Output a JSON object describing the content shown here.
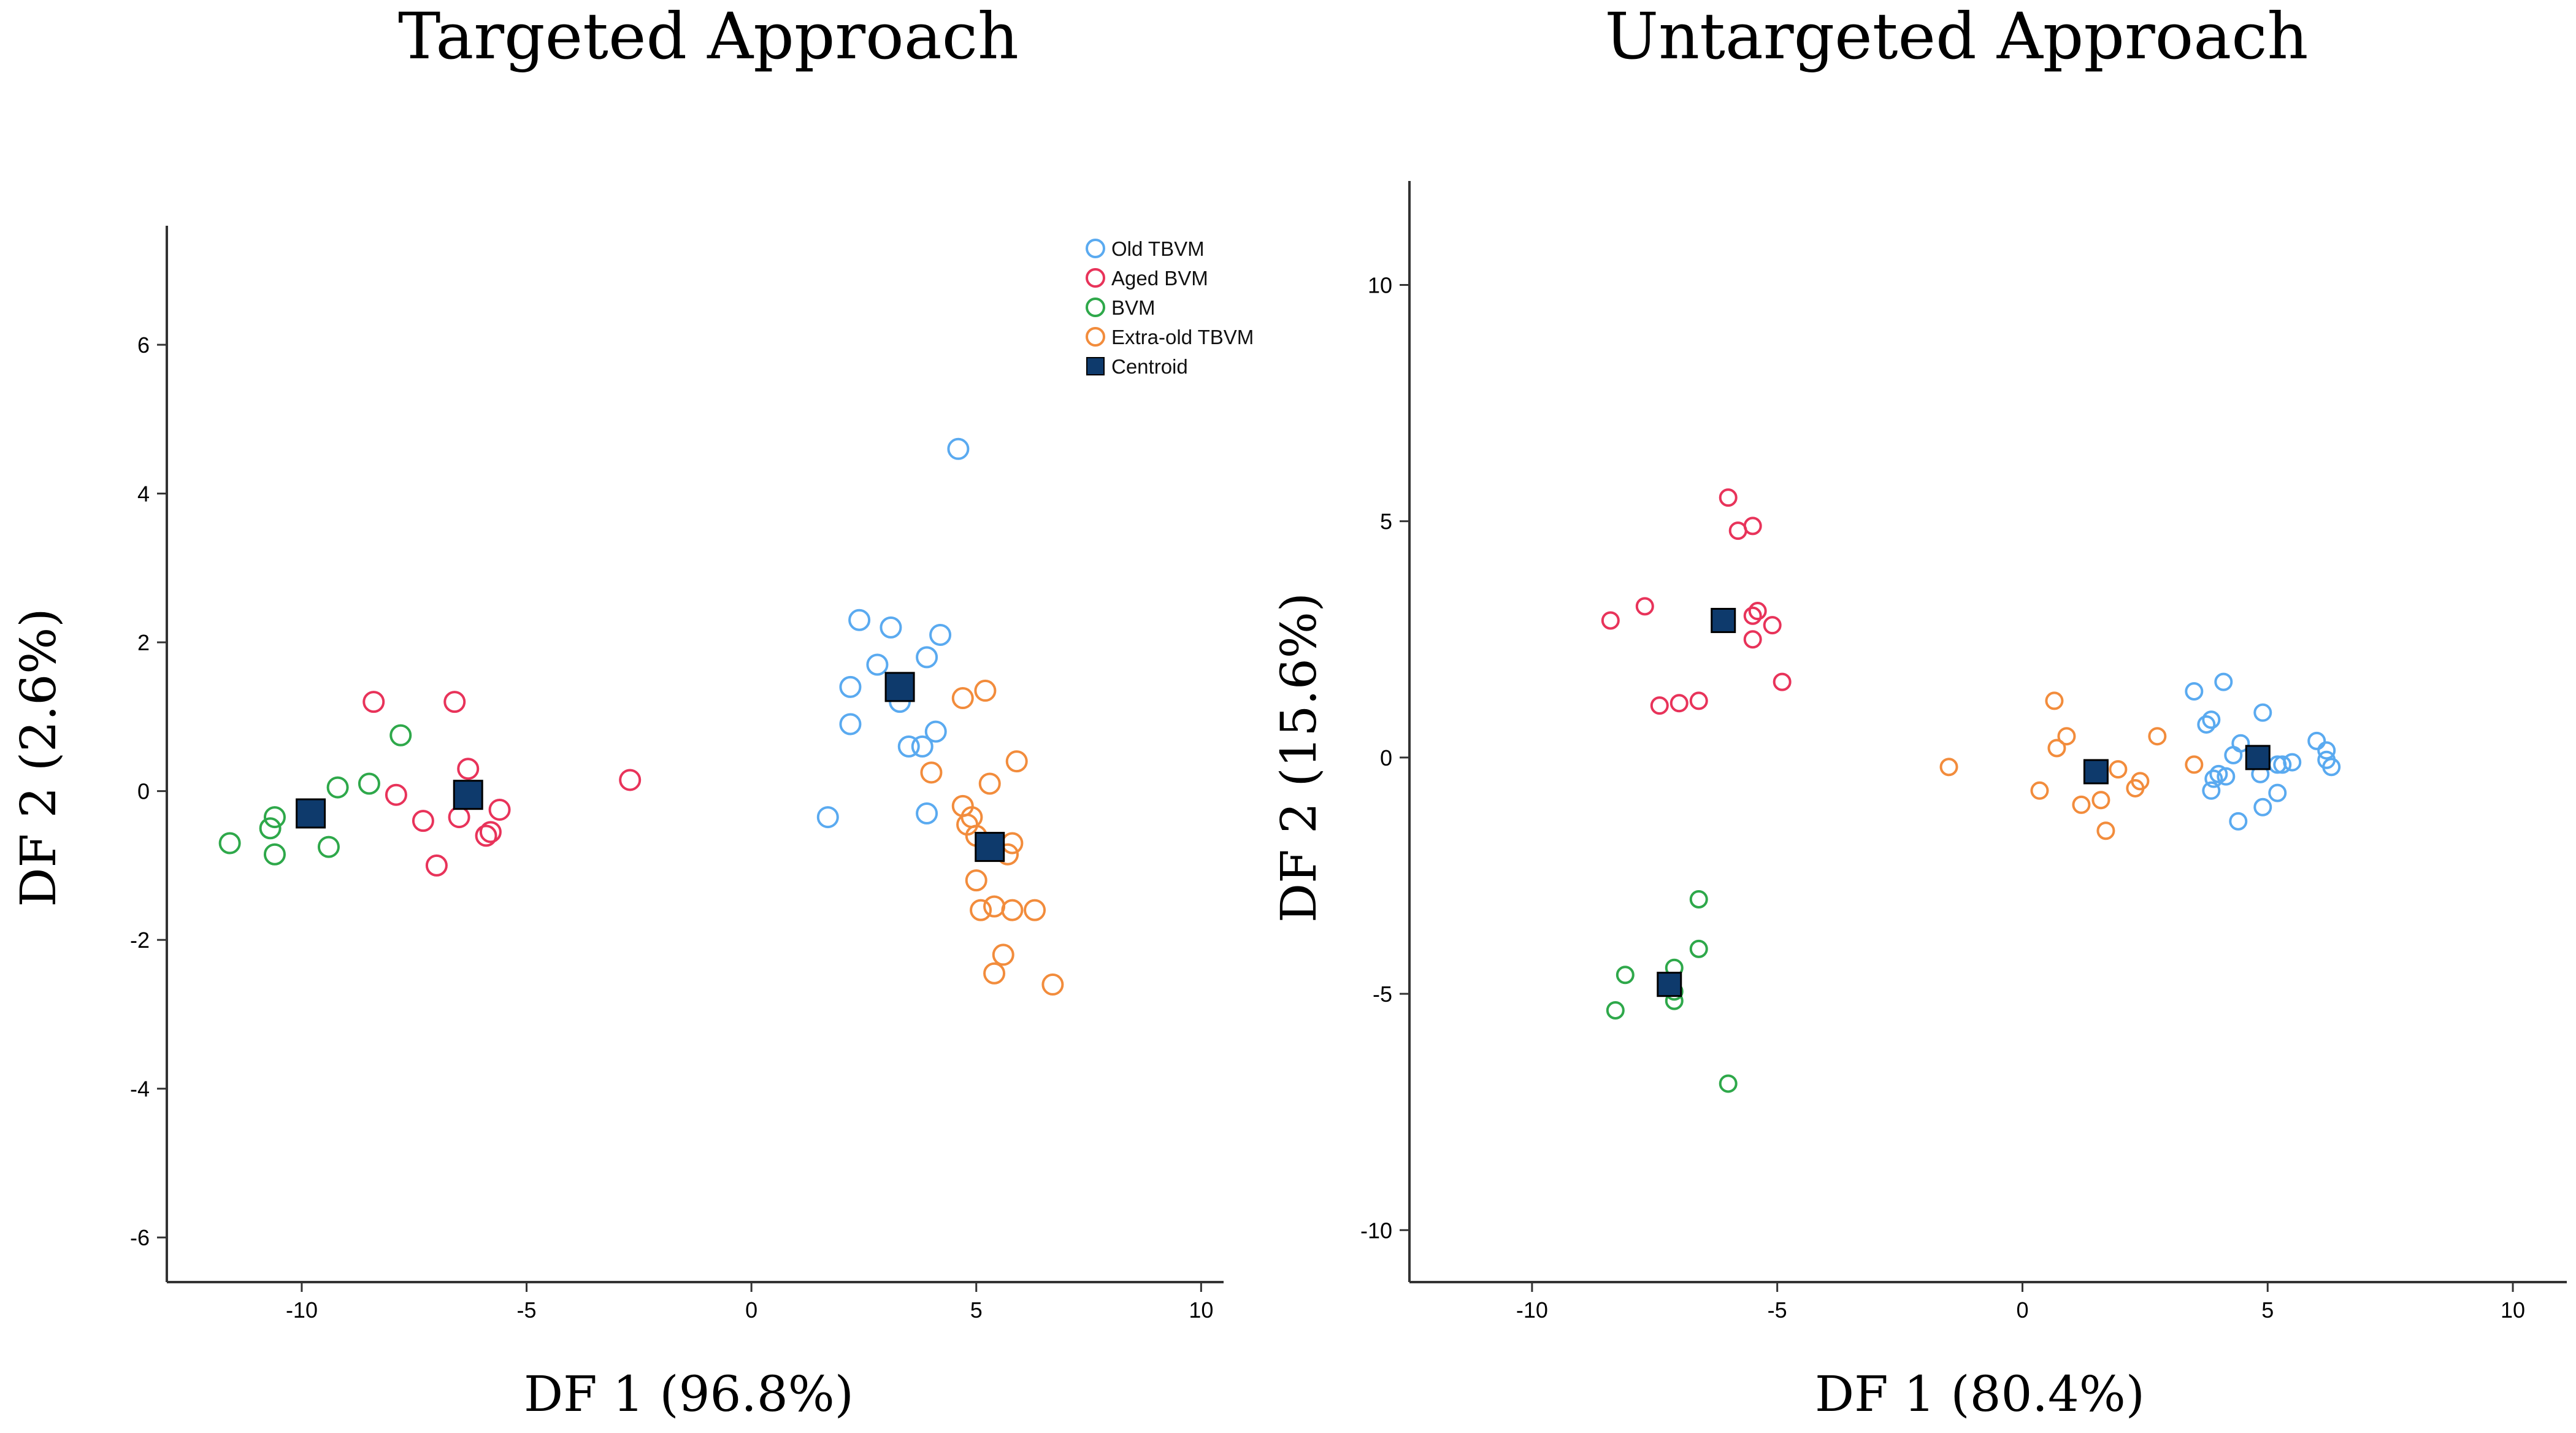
{
  "colors": {
    "old_tbvm": "#5aaaf0",
    "aged_bvm": "#e8335a",
    "bvm": "#2ea84a",
    "extra_old_tbvm": "#f28c3c",
    "centroid": "#0e3a6c",
    "axis": "#333333"
  },
  "legend": [
    {
      "key": "old_tbvm",
      "label": "Old TBVM",
      "marker": "circle"
    },
    {
      "key": "aged_bvm",
      "label": "Aged BVM",
      "marker": "circle"
    },
    {
      "key": "bvm",
      "label": "BVM",
      "marker": "circle"
    },
    {
      "key": "extra_old_tbvm",
      "label": "Extra-old TBVM",
      "marker": "circle"
    },
    {
      "key": "centroid",
      "label": "Centroid",
      "marker": "square"
    }
  ],
  "chart_data": [
    {
      "type": "scatter",
      "title": "Targeted Approach",
      "xlabel": "DF 1 (96.8%)",
      "ylabel": "DF 2 (2.6%)",
      "xlim": [
        -13,
        10.5
      ],
      "ylim": [
        -6.6,
        7.6
      ],
      "xticks": [
        -10,
        -5,
        0,
        5,
        10
      ],
      "xtick_labels": [
        "-10",
        "-5",
        "0",
        "5",
        "10"
      ],
      "yticks": [
        6,
        4,
        2,
        0,
        -2,
        -4,
        -6
      ],
      "ytick_labels": [
        "6",
        "4",
        "2",
        "0",
        "-2",
        "-4",
        "-6"
      ],
      "series": [
        {
          "name": "Old TBVM",
          "key": "old_tbvm",
          "points": [
            [
              4.6,
              4.6
            ],
            [
              2.4,
              2.3
            ],
            [
              3.1,
              2.2
            ],
            [
              4.2,
              2.1
            ],
            [
              3.9,
              1.8
            ],
            [
              2.8,
              1.7
            ],
            [
              2.2,
              1.4
            ],
            [
              3.3,
              1.2
            ],
            [
              2.2,
              0.9
            ],
            [
              4.1,
              0.8
            ],
            [
              3.5,
              0.6
            ],
            [
              3.8,
              0.6
            ],
            [
              1.7,
              -0.35
            ],
            [
              3.9,
              -0.3
            ]
          ]
        },
        {
          "name": "Aged BVM",
          "key": "aged_bvm",
          "points": [
            [
              -8.4,
              1.2
            ],
            [
              -6.6,
              1.2
            ],
            [
              -7.9,
              -0.05
            ],
            [
              -6.3,
              0.3
            ],
            [
              -2.7,
              0.15
            ],
            [
              -6.5,
              -0.35
            ],
            [
              -7.3,
              -0.4
            ],
            [
              -5.6,
              -0.25
            ],
            [
              -5.8,
              -0.55
            ],
            [
              -5.9,
              -0.6
            ],
            [
              -7.0,
              -1.0
            ]
          ]
        },
        {
          "name": "BVM",
          "key": "bvm",
          "points": [
            [
              -7.8,
              0.75
            ],
            [
              -9.2,
              0.05
            ],
            [
              -8.5,
              0.1
            ],
            [
              -10.6,
              -0.35
            ],
            [
              -10.7,
              -0.5
            ],
            [
              -11.6,
              -0.7
            ],
            [
              -10.6,
              -0.85
            ],
            [
              -9.4,
              -0.75
            ]
          ]
        },
        {
          "name": "Extra-old TBVM",
          "key": "extra_old_tbvm",
          "points": [
            [
              5.2,
              1.35
            ],
            [
              4.7,
              1.25
            ],
            [
              5.9,
              0.4
            ],
            [
              4.0,
              0.25
            ],
            [
              5.3,
              0.1
            ],
            [
              4.7,
              -0.2
            ],
            [
              4.9,
              -0.35
            ],
            [
              4.8,
              -0.45
            ],
            [
              5.0,
              -0.6
            ],
            [
              5.8,
              -0.7
            ],
            [
              5.3,
              -0.8
            ],
            [
              5.7,
              -0.85
            ],
            [
              5.0,
              -1.2
            ],
            [
              5.1,
              -1.6
            ],
            [
              5.4,
              -1.55
            ],
            [
              5.8,
              -1.6
            ],
            [
              6.3,
              -1.6
            ],
            [
              5.6,
              -2.2
            ],
            [
              5.4,
              -2.45
            ],
            [
              6.7,
              -2.6
            ]
          ]
        },
        {
          "name": "Centroid",
          "key": "centroid",
          "points": [
            [
              3.3,
              1.4
            ],
            [
              -9.8,
              -0.3
            ],
            [
              -6.3,
              -0.05
            ],
            [
              5.3,
              -0.75
            ]
          ]
        }
      ]
    },
    {
      "type": "scatter",
      "title": "Untargeted Approach",
      "xlabel": "DF 1 (80.4%)",
      "ylabel": "DF 2 (15.6%)",
      "xlim": [
        -12.5,
        11.1
      ],
      "ylim": [
        -11.1,
        12.2
      ],
      "xticks": [
        -10,
        -5,
        0,
        5,
        10
      ],
      "xtick_labels": [
        "-10",
        "-5",
        "0",
        "5",
        "10"
      ],
      "yticks": [
        10,
        5,
        0,
        -5,
        -10
      ],
      "ytick_labels": [
        "10",
        "5",
        "0",
        "-5",
        "-10"
      ],
      "series": [
        {
          "name": "Old TBVM",
          "key": "old_tbvm",
          "points": [
            [
              4.1,
              1.6
            ],
            [
              3.5,
              1.4
            ],
            [
              4.9,
              0.95
            ],
            [
              3.85,
              0.8
            ],
            [
              3.75,
              0.7
            ],
            [
              6.0,
              0.35
            ],
            [
              4.45,
              0.3
            ],
            [
              4.3,
              0.05
            ],
            [
              6.2,
              0.15
            ],
            [
              6.2,
              -0.05
            ],
            [
              5.5,
              -0.1
            ],
            [
              5.2,
              -0.15
            ],
            [
              5.3,
              -0.15
            ],
            [
              6.3,
              -0.2
            ],
            [
              4.0,
              -0.35
            ],
            [
              4.85,
              -0.35
            ],
            [
              4.15,
              -0.4
            ],
            [
              3.9,
              -0.45
            ],
            [
              3.85,
              -0.7
            ],
            [
              5.2,
              -0.75
            ],
            [
              4.9,
              -1.05
            ],
            [
              4.4,
              -1.35
            ]
          ]
        },
        {
          "name": "Aged BVM",
          "key": "aged_bvm",
          "points": [
            [
              -6.0,
              5.5
            ],
            [
              -5.8,
              4.8
            ],
            [
              -5.5,
              4.9
            ],
            [
              -7.7,
              3.2
            ],
            [
              -5.4,
              3.1
            ],
            [
              -5.5,
              3.0
            ],
            [
              -8.4,
              2.9
            ],
            [
              -5.1,
              2.8
            ],
            [
              -5.5,
              2.5
            ],
            [
              -4.9,
              1.6
            ],
            [
              -6.6,
              1.2
            ],
            [
              -7.0,
              1.15
            ],
            [
              -7.4,
              1.1
            ]
          ]
        },
        {
          "name": "BVM",
          "key": "bvm",
          "points": [
            [
              -6.6,
              -3.0
            ],
            [
              -6.6,
              -4.05
            ],
            [
              -7.1,
              -4.45
            ],
            [
              -8.1,
              -4.6
            ],
            [
              -7.1,
              -4.95
            ],
            [
              -7.1,
              -5.15
            ],
            [
              -8.3,
              -5.35
            ],
            [
              -6.0,
              -6.9
            ]
          ]
        },
        {
          "name": "Extra-old TBVM",
          "key": "extra_old_tbvm",
          "points": [
            [
              0.65,
              1.2
            ],
            [
              0.9,
              0.45
            ],
            [
              2.75,
              0.45
            ],
            [
              0.7,
              0.2
            ],
            [
              3.5,
              -0.15
            ],
            [
              -1.5,
              -0.2
            ],
            [
              1.95,
              -0.25
            ],
            [
              2.4,
              -0.5
            ],
            [
              2.3,
              -0.65
            ],
            [
              0.35,
              -0.7
            ],
            [
              1.6,
              -0.9
            ],
            [
              1.2,
              -1.0
            ],
            [
              1.7,
              -1.55
            ]
          ]
        },
        {
          "name": "Centroid",
          "key": "centroid",
          "points": [
            [
              -6.1,
              2.9
            ],
            [
              1.5,
              -0.3
            ],
            [
              4.8,
              0.0
            ],
            [
              -7.2,
              -4.8
            ]
          ]
        }
      ]
    }
  ]
}
